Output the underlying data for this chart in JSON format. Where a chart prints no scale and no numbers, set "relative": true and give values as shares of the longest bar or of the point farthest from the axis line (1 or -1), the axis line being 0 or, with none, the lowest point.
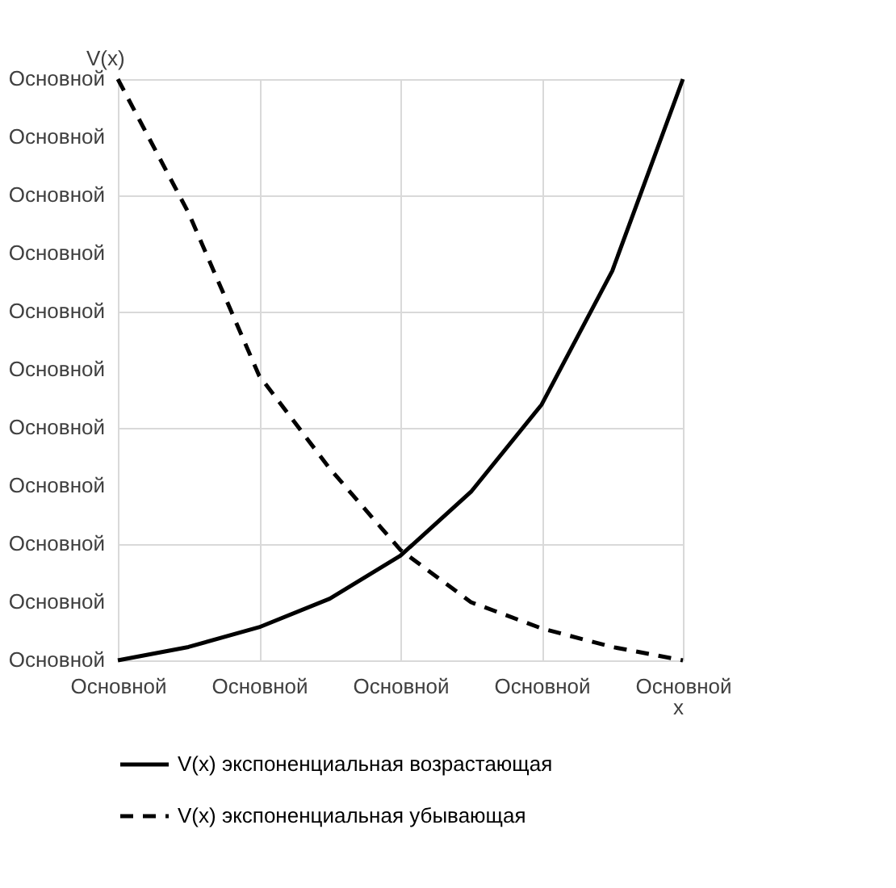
{
  "chart_data": {
    "type": "line",
    "xlabel": "x",
    "ylabel": "V(x)",
    "relative": true,
    "categories": [
      "Основной",
      null,
      "Основной",
      null,
      "Основной",
      null,
      "Основной",
      null,
      "Основной"
    ],
    "series": [
      {
        "name": "V(x) экспоненциальная возрастающая",
        "color": "#000000",
        "line_style": "solid",
        "values": [
          0,
          0.023,
          0.057,
          0.106,
          0.18,
          0.29,
          0.44,
          0.67,
          1.0
        ]
      },
      {
        "name": "V(x)  экспоненциальная убывающая",
        "color": "#000000",
        "line_style": "dashed",
        "values": [
          1.0,
          0.77,
          0.49,
          0.33,
          0.19,
          0.1,
          0.055,
          0.023,
          0
        ]
      }
    ],
    "annotations": [
      "Основной",
      "Основной",
      "Основной",
      "Основной",
      "Основной",
      "Основной",
      "Основной",
      "Основной",
      "Основной",
      "Основной",
      "Основной"
    ],
    "grid": true,
    "legend": "bottom",
    "marker": "none"
  }
}
